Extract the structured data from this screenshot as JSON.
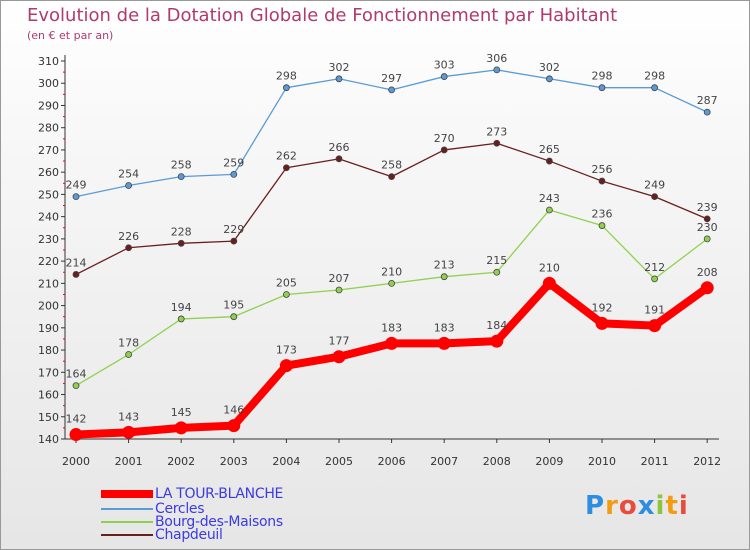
{
  "chart_data": {
    "type": "line",
    "title": "Evolution de la Dotation Globale de Fonctionnement par Habitant",
    "subtitle": "(en € et par an)",
    "xlabel": "",
    "ylabel": "",
    "categories": [
      "2000",
      "2001",
      "2002",
      "2003",
      "2004",
      "2005",
      "2006",
      "2007",
      "2008",
      "2009",
      "2010",
      "2011",
      "2012"
    ],
    "ylim": [
      140,
      310
    ],
    "yticks": [
      140,
      150,
      160,
      170,
      180,
      190,
      200,
      210,
      220,
      230,
      240,
      250,
      260,
      270,
      280,
      290,
      300,
      310
    ],
    "grid": false,
    "legend_position": "bottom-left",
    "series": [
      {
        "name": "Cercles",
        "color": "#5a9bd5",
        "values": [
          249,
          254,
          258,
          259,
          298,
          302,
          297,
          303,
          306,
          302,
          298,
          298,
          287
        ]
      },
      {
        "name": "Chapdeuil",
        "color": "#6b1e1e",
        "values": [
          214,
          226,
          228,
          229,
          262,
          266,
          258,
          270,
          273,
          265,
          256,
          249,
          239
        ]
      },
      {
        "name": "Bourg-des-Maisons",
        "color": "#8fd14f",
        "values": [
          164,
          178,
          194,
          195,
          205,
          207,
          210,
          213,
          215,
          243,
          236,
          212,
          230
        ]
      },
      {
        "name": "LA TOUR-BLANCHE",
        "color": "#ff0000",
        "values": [
          142,
          143,
          145,
          146,
          173,
          177,
          183,
          183,
          184,
          210,
          192,
          191,
          208
        ]
      }
    ],
    "legend": [
      "LA TOUR-BLANCHE",
      "Cercles",
      "Bourg-des-Maisons",
      "Chapdeuil"
    ]
  },
  "branding": {
    "logo_letters": [
      "P",
      "r",
      "o",
      "x",
      "i",
      "t",
      "i"
    ],
    "logo_colors": [
      "#2f8de0",
      "#f39c12",
      "#e74c3c",
      "#2f8de0",
      "#8cc63f",
      "#f39c12",
      "#e74c3c"
    ]
  }
}
